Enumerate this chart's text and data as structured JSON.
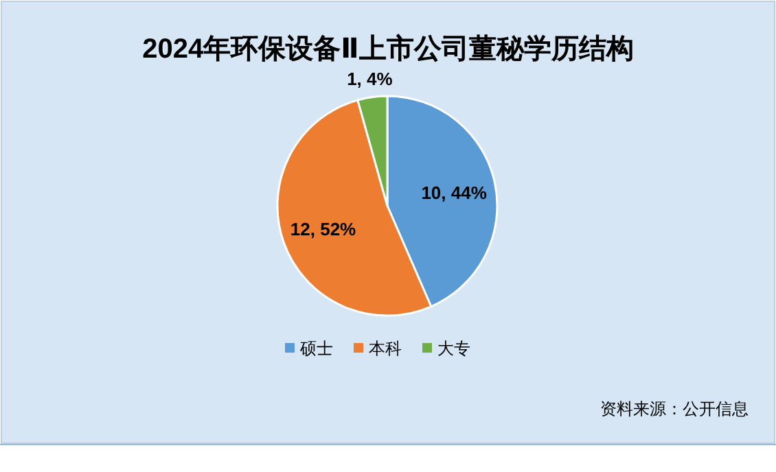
{
  "chart_data": {
    "type": "pie",
    "title": "2024年环保设备Ⅱ上市公司董秘学历结构",
    "categories": [
      "硕士",
      "本科",
      "大专"
    ],
    "values": [
      10,
      12,
      1
    ],
    "colors": [
      "#5b9bd5",
      "#ed7d31",
      "#70ad47"
    ],
    "value_labels": [
      "10, 44%",
      "12, 52%",
      "1, 4%"
    ],
    "legend": "bottom",
    "annotations": [
      "资料来源：公开信息"
    ]
  }
}
